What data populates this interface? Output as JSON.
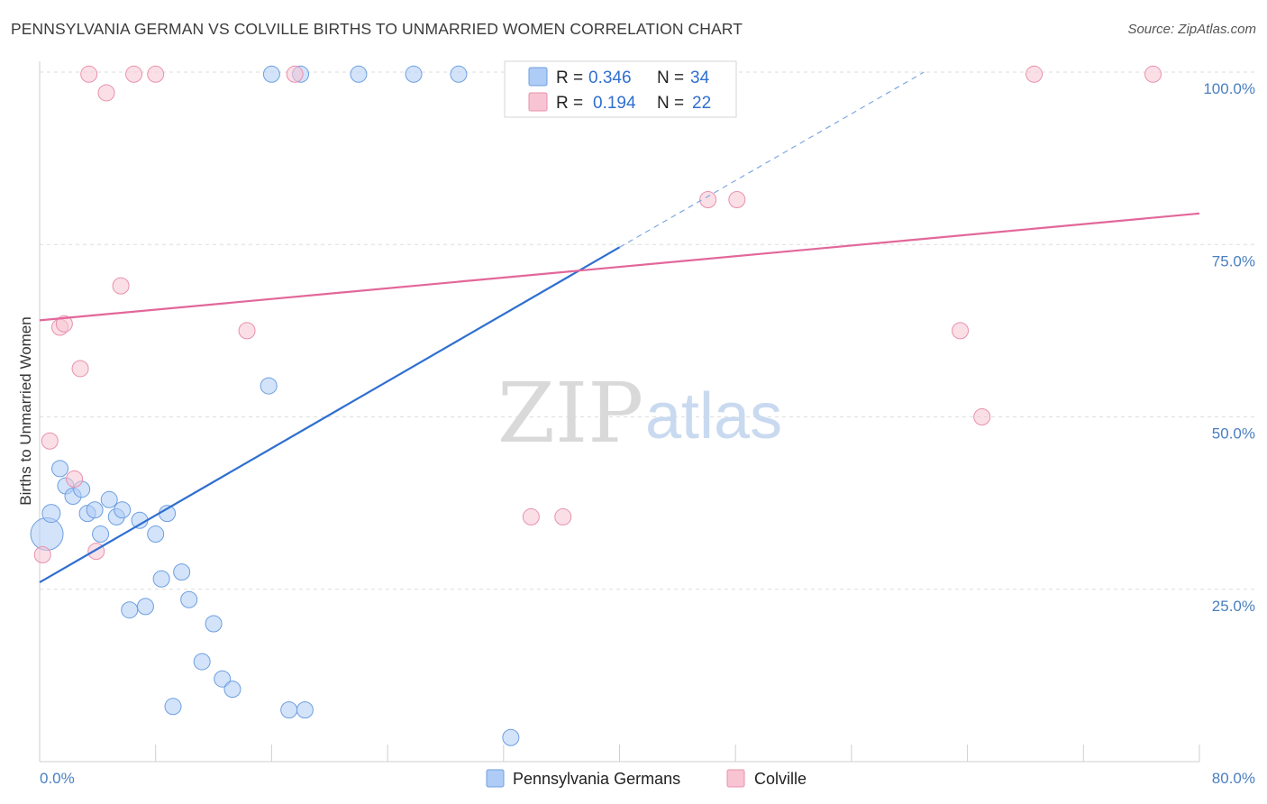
{
  "title": "PENNSYLVANIA GERMAN VS COLVILLE BIRTHS TO UNMARRIED WOMEN CORRELATION CHART",
  "source": "Source: ZipAtlas.com",
  "watermark": {
    "part1": "ZIP",
    "part2": "atlas"
  },
  "legend": {
    "r_label": "R =",
    "n_label": "N =",
    "rows": [
      {
        "r": "0.346",
        "n": "34",
        "color": "#aeccf5",
        "stroke": "#6d9fe0"
      },
      {
        "r": "0.194",
        "n": "22",
        "color": "#f8c4d4",
        "stroke": "#e891ad"
      }
    ]
  },
  "bottom_legend": [
    {
      "label": "Pennsylvania Germans",
      "color": "#aeccf5",
      "stroke": "#6d9fe0"
    },
    {
      "label": "Colville",
      "color": "#f8c4d4",
      "stroke": "#e891ad"
    }
  ],
  "chart_data": {
    "type": "scatter",
    "title": "PENNSYLVANIA GERMAN VS COLVILLE BIRTHS TO UNMARRIED WOMEN CORRELATION CHART",
    "xlabel": "",
    "ylabel": "Births to Unmarried Women",
    "xlim": [
      0,
      80
    ],
    "ylim": [
      0,
      100
    ],
    "x_tick_labels": [
      "0.0%",
      "80.0%"
    ],
    "y_tick_labels": [
      "100.0%",
      "75.0%",
      "50.0%",
      "25.0%"
    ],
    "y_ticks": [
      100,
      75,
      50,
      25
    ],
    "grid": true,
    "series": [
      {
        "name": "Pennsylvania Germans",
        "color": "#4a7fd6",
        "points": [
          [
            0.5,
            33,
            18
          ],
          [
            0.8,
            36,
            10
          ],
          [
            1.4,
            42.5,
            9
          ],
          [
            1.8,
            40,
            9
          ],
          [
            2.3,
            38.5,
            9
          ],
          [
            2.9,
            39.5,
            9
          ],
          [
            3.3,
            36,
            9
          ],
          [
            3.8,
            36.5,
            9
          ],
          [
            4.2,
            33,
            9
          ],
          [
            4.8,
            38,
            9
          ],
          [
            5.3,
            35.5,
            9
          ],
          [
            5.7,
            36.5,
            9
          ],
          [
            6.2,
            22,
            9
          ],
          [
            6.9,
            35,
            9
          ],
          [
            7.3,
            22.5,
            9
          ],
          [
            8.0,
            33,
            9
          ],
          [
            8.4,
            26.5,
            9
          ],
          [
            8.8,
            36,
            9
          ],
          [
            9.2,
            8,
            9
          ],
          [
            9.8,
            27.5,
            9
          ],
          [
            10.3,
            23.5,
            9
          ],
          [
            11.2,
            14.5,
            9
          ],
          [
            12.0,
            20,
            9
          ],
          [
            12.6,
            12,
            9
          ],
          [
            13.3,
            10.5,
            9
          ],
          [
            15.8,
            54.5,
            9
          ],
          [
            16.0,
            99.7,
            9
          ],
          [
            17.2,
            7.5,
            9
          ],
          [
            18.0,
            99.7,
            9
          ],
          [
            18.3,
            7.5,
            9
          ],
          [
            22.0,
            99.7,
            9
          ],
          [
            25.8,
            99.7,
            9
          ],
          [
            28.9,
            99.7,
            9
          ],
          [
            32.5,
            3.5,
            9
          ]
        ],
        "trend": {
          "x0": 0,
          "y0": 26,
          "x1": 40,
          "y1": 74.6,
          "dash_to_x": 61,
          "dash_to_y": 100
        }
      },
      {
        "name": "Colville",
        "color": "#e9779e",
        "points": [
          [
            0.2,
            30,
            9
          ],
          [
            0.7,
            46.5,
            9
          ],
          [
            1.4,
            63,
            9
          ],
          [
            1.7,
            63.5,
            9
          ],
          [
            2.4,
            41,
            9
          ],
          [
            2.8,
            57,
            9
          ],
          [
            3.4,
            99.7,
            9
          ],
          [
            3.9,
            30.5,
            9
          ],
          [
            4.6,
            97,
            9
          ],
          [
            5.6,
            69,
            9
          ],
          [
            6.5,
            99.7,
            9
          ],
          [
            8.0,
            99.7,
            9
          ],
          [
            14.3,
            62.5,
            9
          ],
          [
            17.6,
            99.7,
            9
          ],
          [
            33.9,
            35.5,
            9
          ],
          [
            36.1,
            35.5,
            9
          ],
          [
            46.1,
            81.5,
            9
          ],
          [
            48.1,
            81.5,
            9
          ],
          [
            63.5,
            62.5,
            9
          ],
          [
            65.0,
            50,
            9
          ],
          [
            68.6,
            99.7,
            9
          ],
          [
            76.8,
            99.7,
            9
          ]
        ],
        "trend": {
          "x0": 0,
          "y0": 64,
          "x1": 80,
          "y1": 79.5
        }
      }
    ]
  }
}
